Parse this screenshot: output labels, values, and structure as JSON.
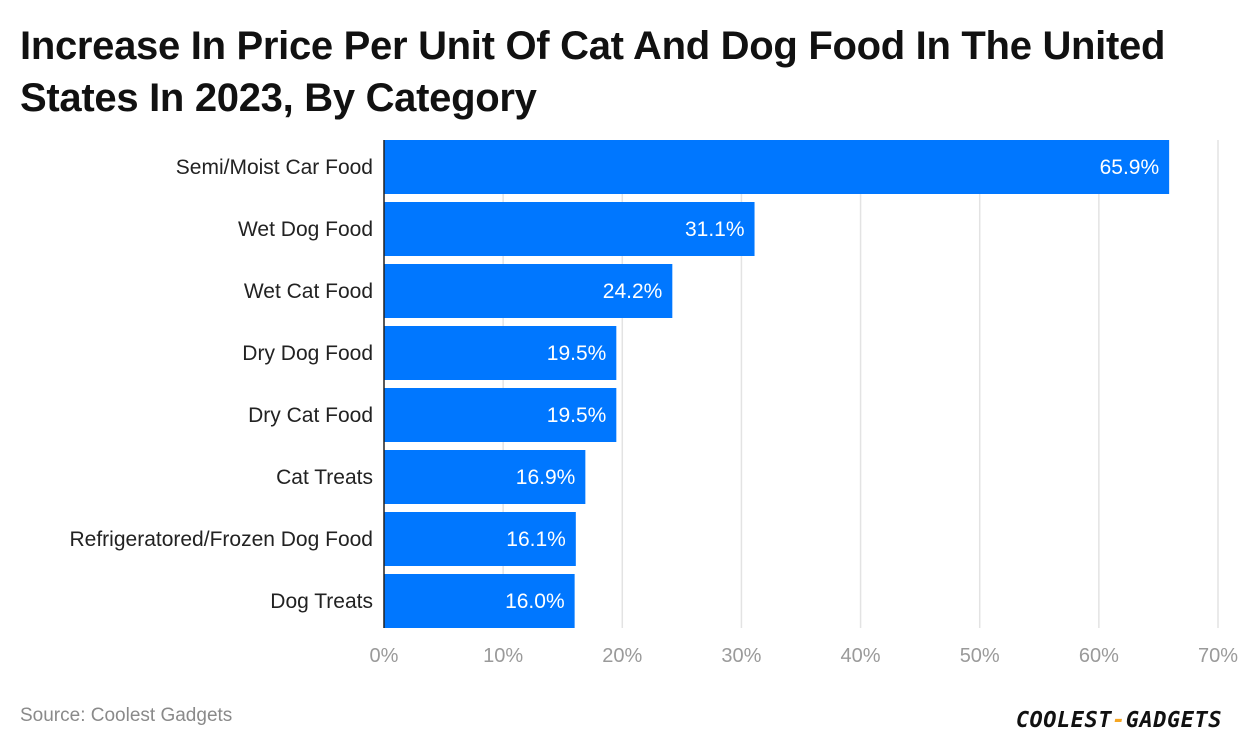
{
  "chart_data": {
    "type": "bar",
    "orientation": "horizontal",
    "title": "Increase In Price Per Unit Of Cat And Dog Food In The United States In 2023, By Category",
    "categories": [
      "Semi/Moist Car Food",
      "Wet Dog Food",
      "Wet Cat Food",
      "Dry Dog Food",
      "Dry Cat Food",
      "Cat Treats",
      "Refrigeratored/Frozen Dog Food",
      "Dog Treats"
    ],
    "values": [
      65.9,
      31.1,
      24.2,
      19.5,
      19.5,
      16.9,
      16.1,
      16.0
    ],
    "value_labels": [
      "65.9%",
      "31.1%",
      "24.2%",
      "19.5%",
      "19.5%",
      "16.9%",
      "16.1%",
      "16.0%"
    ],
    "xticks": [
      0,
      10,
      20,
      30,
      40,
      50,
      60,
      70
    ],
    "xtick_labels": [
      "0%",
      "10%",
      "20%",
      "30%",
      "40%",
      "50%",
      "60%",
      "70%"
    ],
    "xlim": [
      0,
      70
    ],
    "xlabel": "",
    "ylabel": "",
    "grid": true,
    "bar_color": "#0077ff"
  },
  "source": "Source: Coolest Gadgets",
  "logo": {
    "part1": "COOLEST",
    "dash": "-",
    "part2": "GADGETS"
  }
}
